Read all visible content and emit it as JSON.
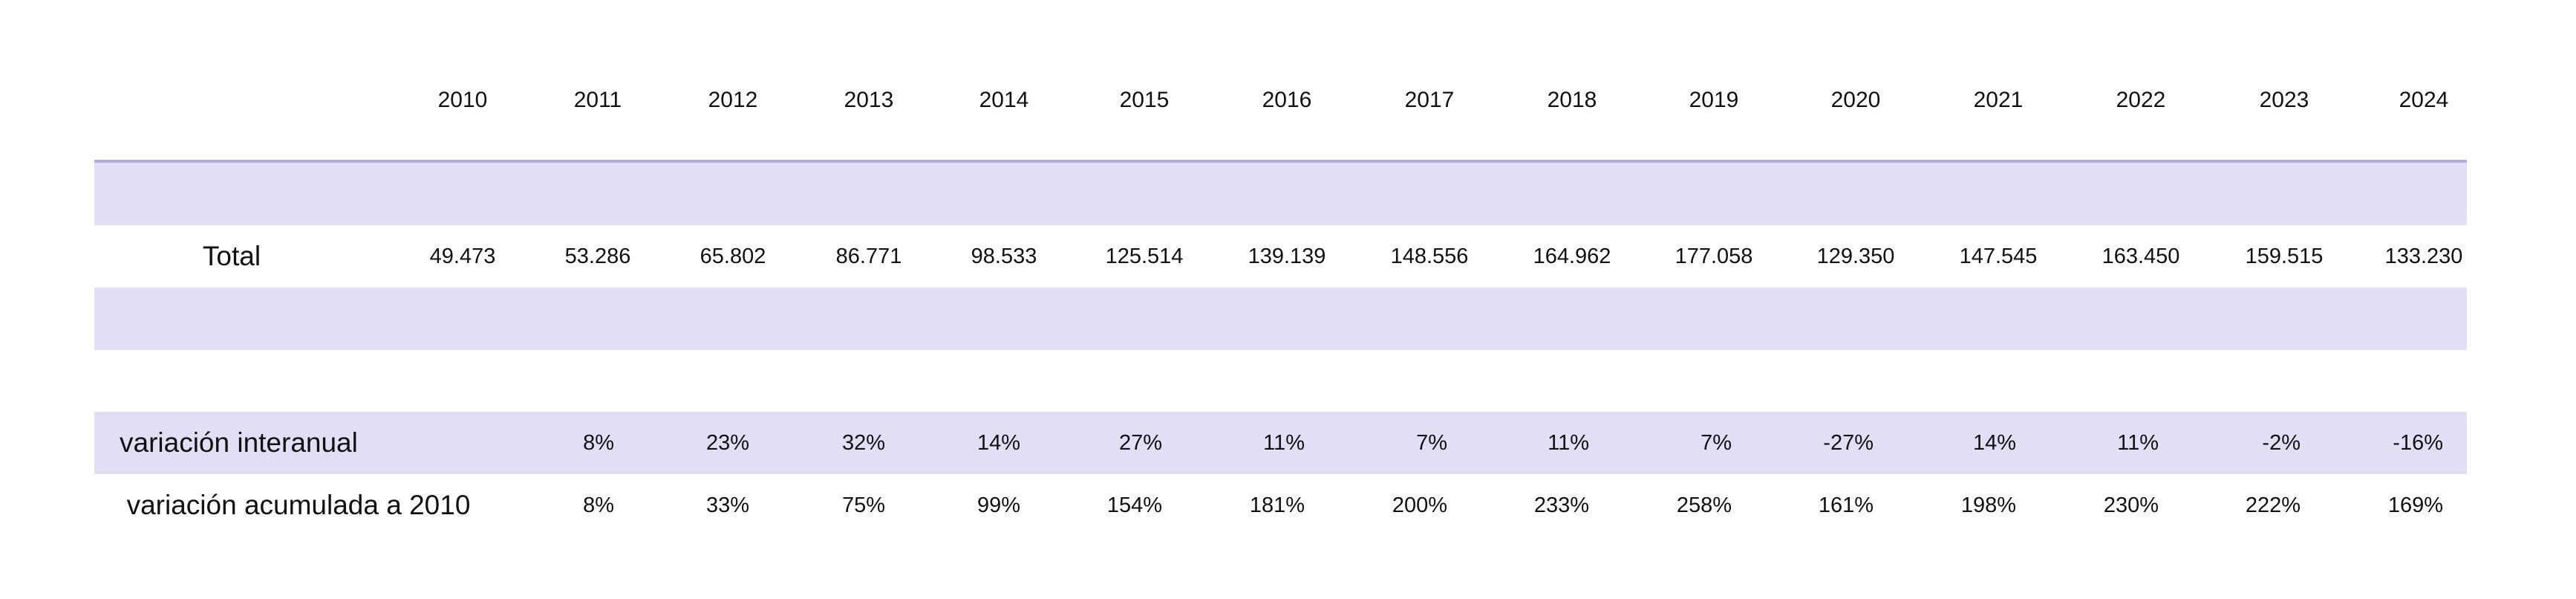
{
  "years": [
    "2010",
    "2011",
    "2012",
    "2013",
    "2014",
    "2015",
    "2016",
    "2017",
    "2018",
    "2019",
    "2020",
    "2021",
    "2022",
    "2023",
    "2024"
  ],
  "rows": {
    "total": {
      "label": "Total",
      "values": [
        "49.473",
        "53.286",
        "65.802",
        "86.771",
        "98.533",
        "125.514",
        "139.139",
        "148.556",
        "164.962",
        "177.058",
        "129.350",
        "147.545",
        "163.450",
        "159.515",
        "133.230"
      ]
    },
    "variacion_interanual": {
      "label": "variación interanual",
      "values": [
        "",
        "8%",
        "23%",
        "32%",
        "14%",
        "27%",
        "11%",
        "7%",
        "11%",
        "7%",
        "-27%",
        "14%",
        "11%",
        "-2%",
        "-16%"
      ]
    },
    "variacion_acumulada": {
      "label": "variación acumulada a 2010",
      "values": [
        "",
        "8%",
        "33%",
        "75%",
        "99%",
        "154%",
        "181%",
        "200%",
        "233%",
        "258%",
        "161%",
        "198%",
        "230%",
        "222%",
        "169%"
      ]
    }
  },
  "colors": {
    "band_fill": "#e1def6",
    "header_rule": "#b3abe0",
    "text": "#111111",
    "background": "#ffffff"
  }
}
